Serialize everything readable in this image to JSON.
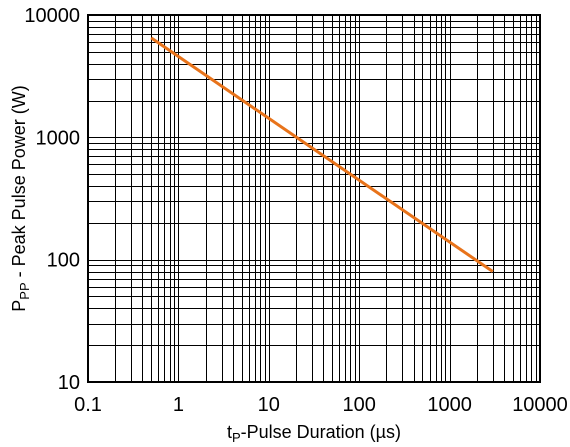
{
  "chart_data": {
    "type": "line",
    "title": "",
    "xlabel": {
      "prefix": "t",
      "sub": "P",
      "rest": "-Pulse Duration (µs)"
    },
    "ylabel": {
      "prefix": "P",
      "sub": "PP",
      "rest": " - Peak Pulse Power (W)"
    },
    "x_scale": "log",
    "y_scale": "log",
    "xlim": [
      0.1,
      10000
    ],
    "ylim": [
      10,
      10000
    ],
    "x_ticks": [
      {
        "value": 0.1,
        "label": "0.1"
      },
      {
        "value": 1,
        "label": "1"
      },
      {
        "value": 10,
        "label": "10"
      },
      {
        "value": 100,
        "label": "100"
      },
      {
        "value": 1000,
        "label": "1000"
      },
      {
        "value": 10000,
        "label": "10000"
      }
    ],
    "y_ticks": [
      {
        "value": 10,
        "label": "10"
      },
      {
        "value": 100,
        "label": "100"
      },
      {
        "value": 1000,
        "label": "1000"
      },
      {
        "value": 10000,
        "label": "10000"
      }
    ],
    "grid": true,
    "series": [
      {
        "color": "#e8731a",
        "x": [
          0.5,
          3000
        ],
        "y": [
          6500,
          80
        ]
      }
    ]
  }
}
